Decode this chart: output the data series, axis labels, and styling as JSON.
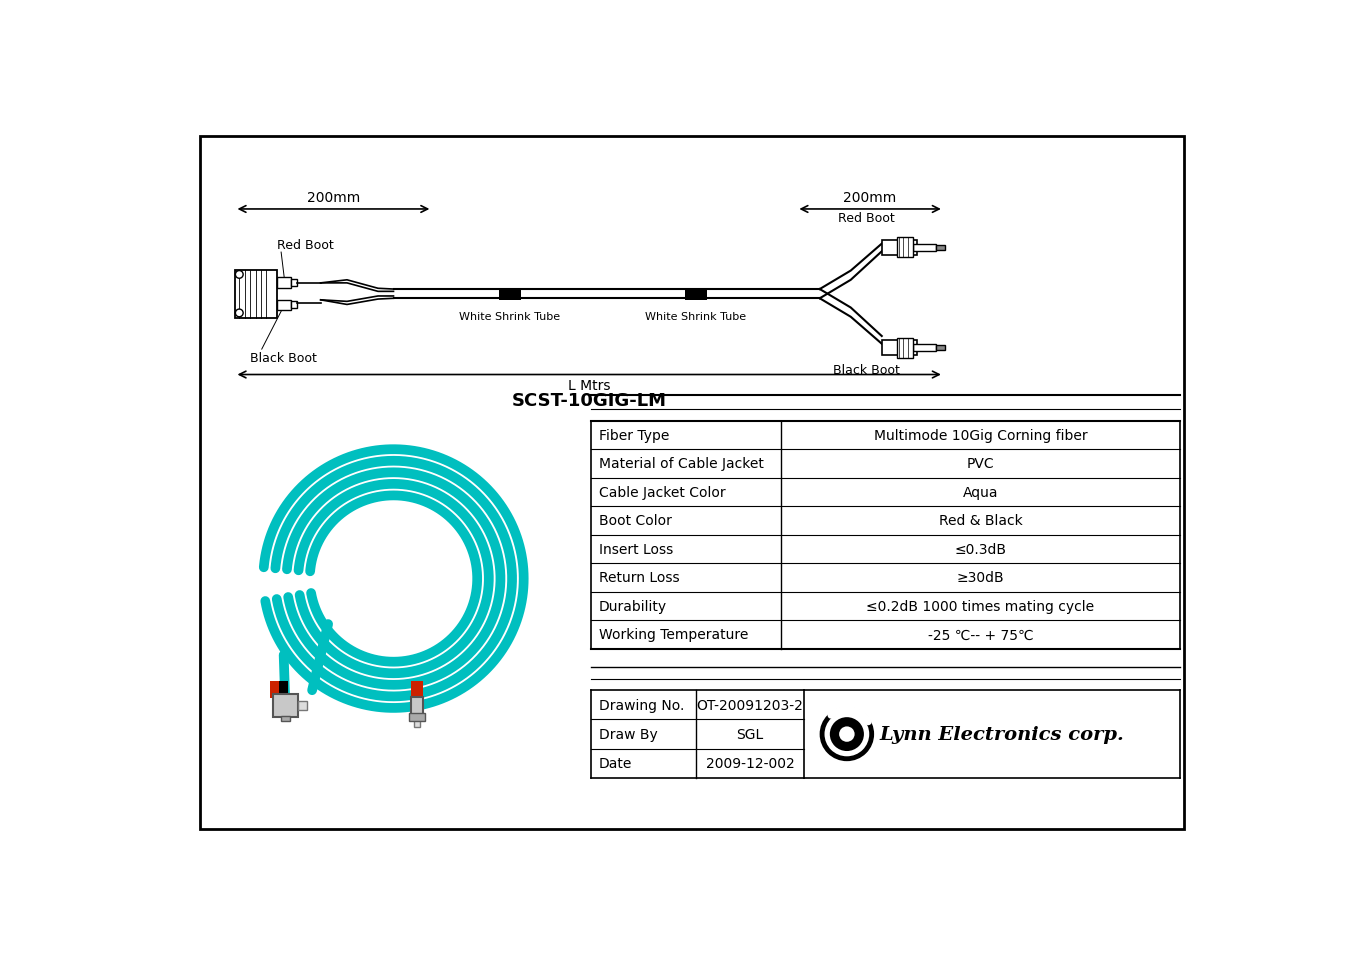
{
  "bg_color": "#ffffff",
  "border_color": "#000000",
  "title": "SCST-10GIG-LM",
  "dim_label_left": "200mm",
  "dim_label_right": "200mm",
  "dim_label_bottom": "L Mtrs",
  "table_rows": [
    [
      "Fiber Type",
      "Multimode 10Gig Corning fiber"
    ],
    [
      "Material of Cable Jacket",
      "PVC"
    ],
    [
      "Cable Jacket Color",
      "Aqua"
    ],
    [
      "Boot Color",
      "Red & Black"
    ],
    [
      "Insert Loss",
      "≤0.3dB"
    ],
    [
      "Return Loss",
      "≥30dB"
    ],
    [
      "Durability",
      "≤0.2dB 1000 times mating cycle"
    ],
    [
      "Working Temperature",
      "-25 ℃-- + 75℃"
    ]
  ],
  "info_rows": [
    [
      "Drawing No.",
      "OT-20091203-2"
    ],
    [
      "Draw By",
      "SGL"
    ],
    [
      "Date",
      "2009-12-002"
    ]
  ],
  "company_name": "Lynn Electronics corp.",
  "aqua_color": "#00bfbf",
  "aqua_light": "#00d0d0",
  "red_color": "#cc2200",
  "black_color": "#000000",
  "gray_color": "#aaaaaa",
  "lgray_color": "#cccccc"
}
